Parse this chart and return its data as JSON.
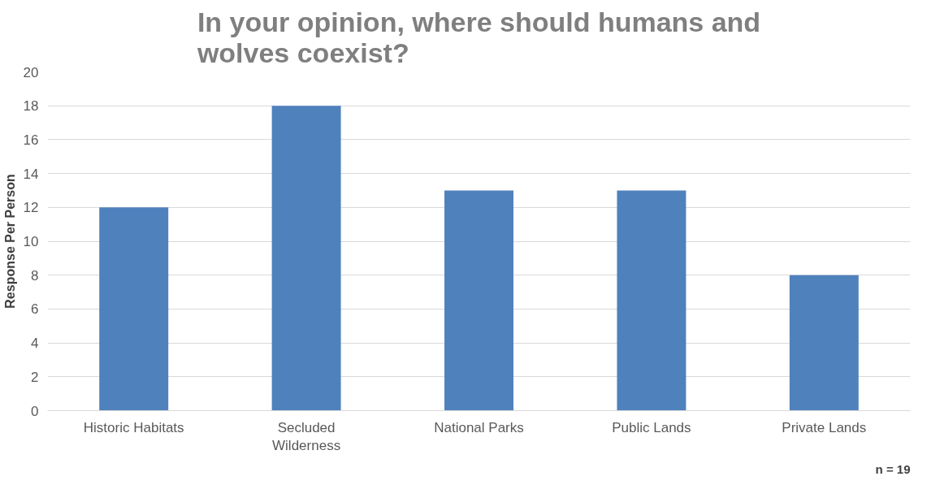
{
  "chart_data": {
    "type": "bar",
    "title": "In your opinion, where should humans and wolves coexist?",
    "ylabel": "Response Per Person",
    "categories": [
      "Historic Habitats",
      "Secluded Wilderness",
      "National Parks",
      "Public Lands",
      "Private Lands"
    ],
    "values": [
      12,
      18,
      13,
      13,
      8
    ],
    "color": "#4f81bd",
    "ylim": [
      0,
      20
    ],
    "yticks": [
      0,
      2,
      4,
      6,
      8,
      10,
      12,
      14,
      16,
      18,
      20
    ],
    "grid": "y",
    "annotations": [
      "n = 19"
    ]
  }
}
